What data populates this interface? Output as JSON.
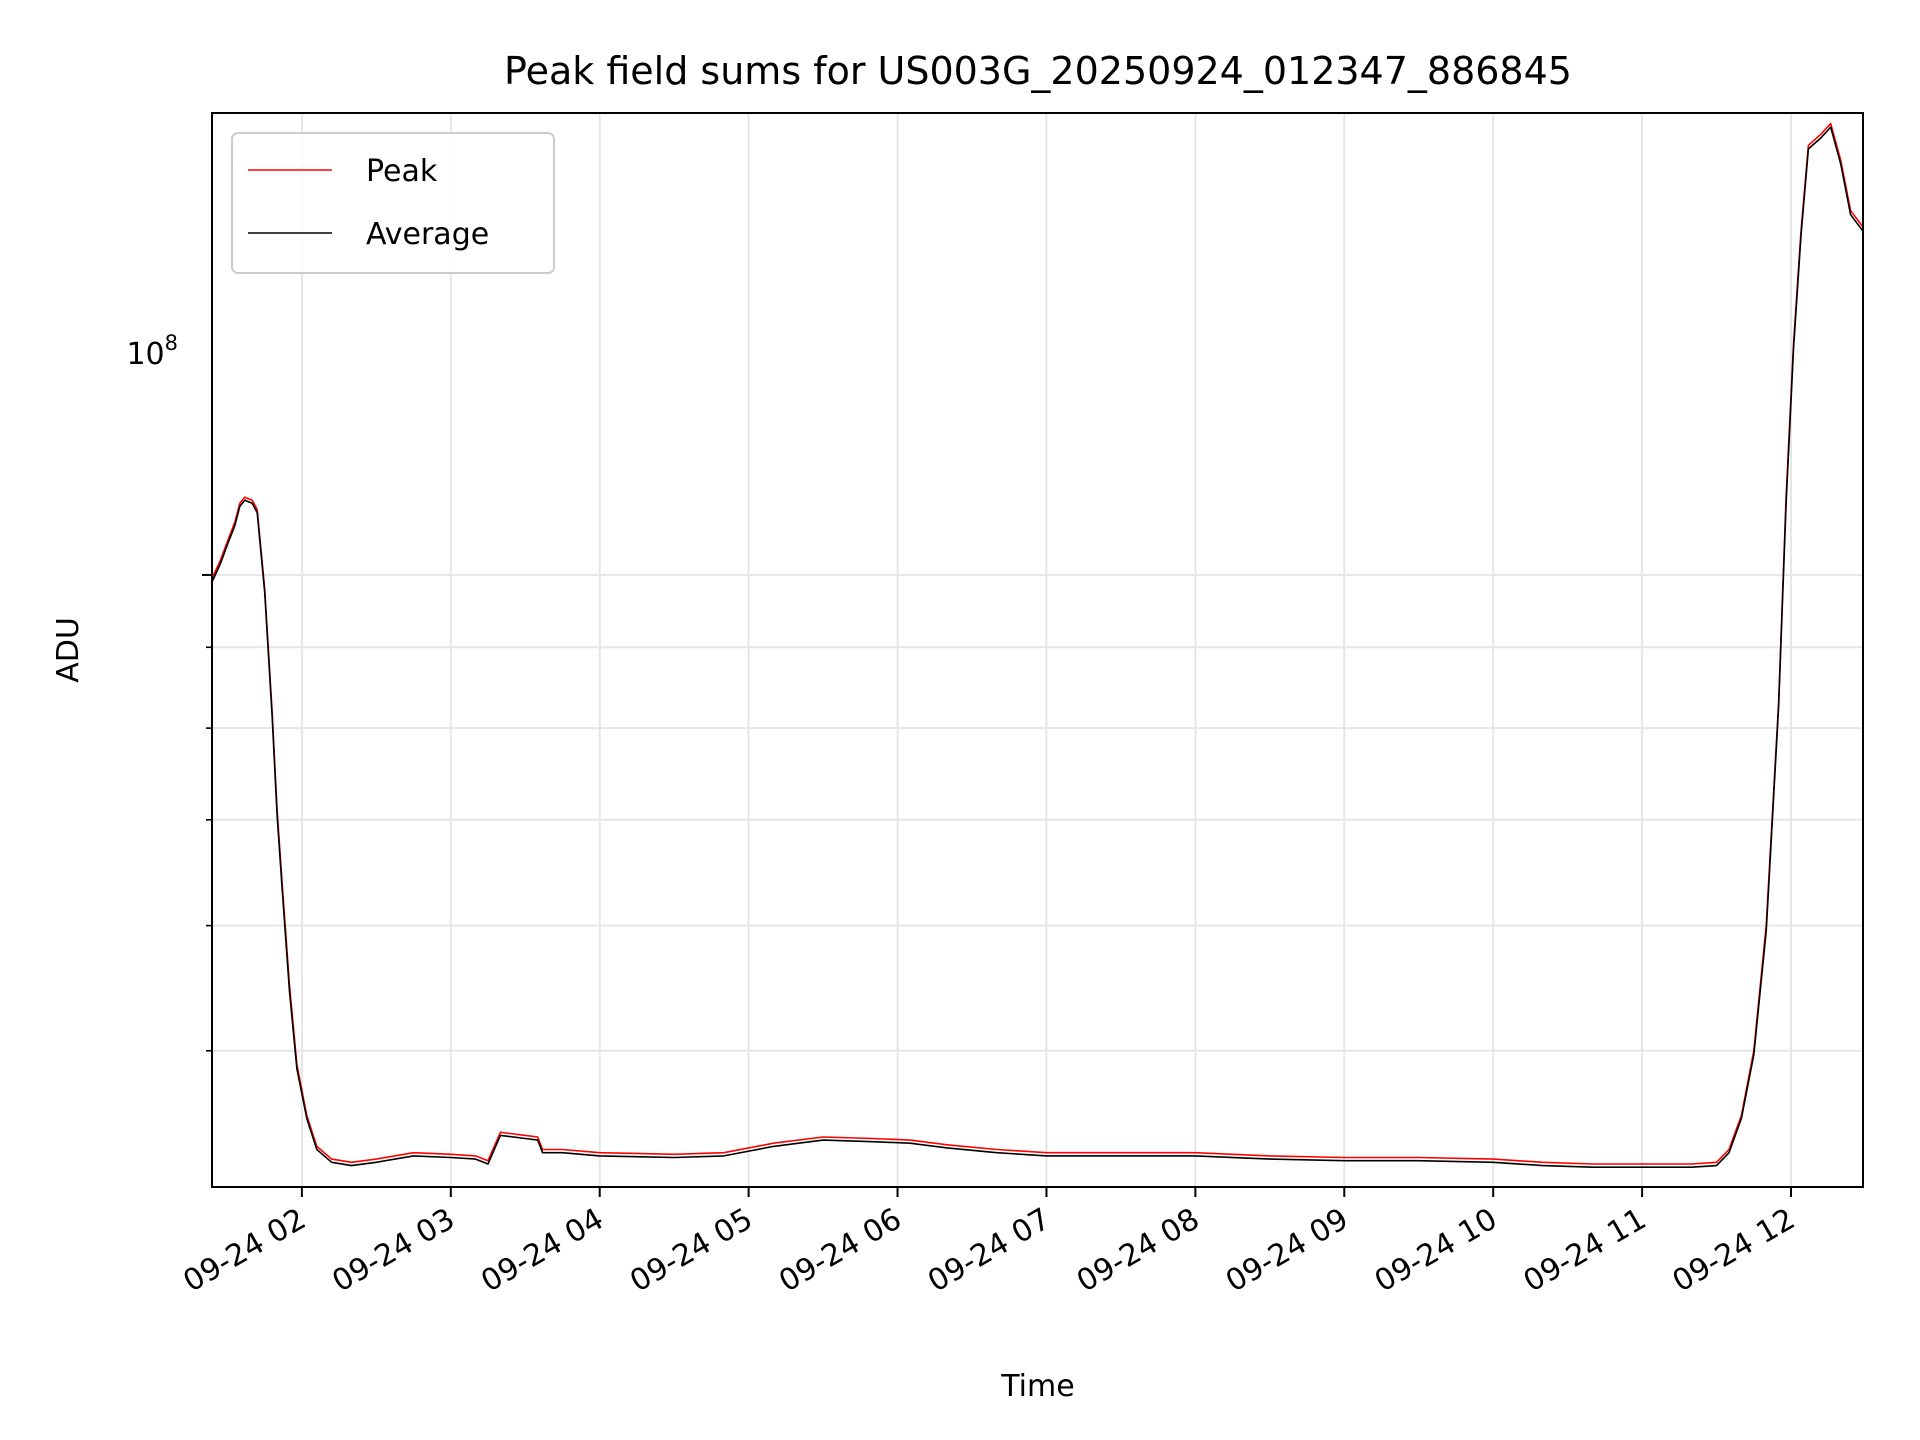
{
  "chart_data": {
    "type": "line",
    "title": "Peak field sums for US003G_20250924_012347_886845",
    "xlabel": "Time",
    "ylabel": "ADU",
    "y_scale": "log",
    "grid": true,
    "legend_position": "top-left",
    "xlim": [
      "2025-09-24 01:23:47",
      "2025-09-24 12:29:00"
    ],
    "ylim": [
      41000000,
      196000000
    ],
    "x_ticks": [
      "09-24 02",
      "09-24 03",
      "09-24 04",
      "09-24 05",
      "09-24 06",
      "09-24 07",
      "09-24 08",
      "09-24 09",
      "09-24 10",
      "09-24 11",
      "09-24 12"
    ],
    "x_tick_times": [
      "2025-09-24 02:00",
      "2025-09-24 03:00",
      "2025-09-24 04:00",
      "2025-09-24 05:00",
      "2025-09-24 06:00",
      "2025-09-24 07:00",
      "2025-09-24 08:00",
      "2025-09-24 09:00",
      "2025-09-24 10:00",
      "2025-09-24 11:00",
      "2025-09-24 12:00"
    ],
    "y_tick_value": 100000000,
    "y_tick_label": {
      "base": "10",
      "exponent": "8"
    },
    "y_minor_ticks": [
      50000000,
      60000000,
      70000000,
      80000000,
      90000000
    ],
    "series": [
      {
        "name": "Peak",
        "color": "#ff0000",
        "points": [
          [
            "2025-09-24 01:23:47",
            99500000
          ],
          [
            "2025-09-24 01:27:00",
            102000000
          ],
          [
            "2025-09-24 01:30:00",
            105000000
          ],
          [
            "2025-09-24 01:33:00",
            108000000
          ],
          [
            "2025-09-24 01:35:00",
            111000000
          ],
          [
            "2025-09-24 01:37:00",
            112000000
          ],
          [
            "2025-09-24 01:40:00",
            111500000
          ],
          [
            "2025-09-24 01:42:00",
            110000000
          ],
          [
            "2025-09-24 01:45:00",
            98000000
          ],
          [
            "2025-09-24 01:48:00",
            82000000
          ],
          [
            "2025-09-24 01:50:00",
            71000000
          ],
          [
            "2025-09-24 01:52:00",
            64000000
          ],
          [
            "2025-09-24 01:55:00",
            55000000
          ],
          [
            "2025-09-24 01:58:00",
            49000000
          ],
          [
            "2025-09-24 02:02:00",
            45500000
          ],
          [
            "2025-09-24 02:06:00",
            43500000
          ],
          [
            "2025-09-24 02:12:00",
            42700000
          ],
          [
            "2025-09-24 02:20:00",
            42500000
          ],
          [
            "2025-09-24 02:30:00",
            42700000
          ],
          [
            "2025-09-24 02:45:00",
            43100000
          ],
          [
            "2025-09-24 03:00:00",
            43000000
          ],
          [
            "2025-09-24 03:10:00",
            42900000
          ],
          [
            "2025-09-24 03:15:00",
            42600000
          ],
          [
            "2025-09-24 03:20:00",
            44400000
          ],
          [
            "2025-09-24 03:30:00",
            44200000
          ],
          [
            "2025-09-24 03:35:00",
            44100000
          ],
          [
            "2025-09-24 03:37:00",
            43300000
          ],
          [
            "2025-09-24 03:45:00",
            43300000
          ],
          [
            "2025-09-24 04:00:00",
            43100000
          ],
          [
            "2025-09-24 04:30:00",
            43000000
          ],
          [
            "2025-09-24 04:50:00",
            43100000
          ],
          [
            "2025-09-24 05:10:00",
            43700000
          ],
          [
            "2025-09-24 05:30:00",
            44100000
          ],
          [
            "2025-09-24 05:50:00",
            44000000
          ],
          [
            "2025-09-24 06:05:00",
            43900000
          ],
          [
            "2025-09-24 06:20:00",
            43600000
          ],
          [
            "2025-09-24 06:40:00",
            43300000
          ],
          [
            "2025-09-24 07:00:00",
            43100000
          ],
          [
            "2025-09-24 07:30:00",
            43100000
          ],
          [
            "2025-09-24 08:00:00",
            43100000
          ],
          [
            "2025-09-24 08:30:00",
            42900000
          ],
          [
            "2025-09-24 09:00:00",
            42800000
          ],
          [
            "2025-09-24 09:30:00",
            42800000
          ],
          [
            "2025-09-24 10:00:00",
            42700000
          ],
          [
            "2025-09-24 10:20:00",
            42500000
          ],
          [
            "2025-09-24 10:40:00",
            42400000
          ],
          [
            "2025-09-24 11:00:00",
            42400000
          ],
          [
            "2025-09-24 11:20:00",
            42400000
          ],
          [
            "2025-09-24 11:30:00",
            42500000
          ],
          [
            "2025-09-24 11:35:00",
            43300000
          ],
          [
            "2025-09-24 11:40:00",
            45500000
          ],
          [
            "2025-09-24 11:45:00",
            50000000
          ],
          [
            "2025-09-24 11:50:00",
            60000000
          ],
          [
            "2025-09-24 11:53:00",
            73000000
          ],
          [
            "2025-09-24 11:55:00",
            83000000
          ],
          [
            "2025-09-24 11:58:00",
            112000000
          ],
          [
            "2025-09-24 12:01:00",
            140000000
          ],
          [
            "2025-09-24 12:04:00",
            165000000
          ],
          [
            "2025-09-24 12:07:00",
            187000000
          ],
          [
            "2025-09-24 12:12:00",
            190000000
          ],
          [
            "2025-09-24 12:16:00",
            193000000
          ],
          [
            "2025-09-24 12:20:00",
            183000000
          ],
          [
            "2025-09-24 12:24:00",
            170000000
          ],
          [
            "2025-09-24 12:29:00",
            166000000
          ]
        ]
      },
      {
        "name": "Average",
        "color": "#000000",
        "points": [
          [
            "2025-09-24 01:23:47",
            99000000
          ],
          [
            "2025-09-24 01:27:00",
            101500000
          ],
          [
            "2025-09-24 01:30:00",
            104500000
          ],
          [
            "2025-09-24 01:33:00",
            107500000
          ],
          [
            "2025-09-24 01:35:00",
            110500000
          ],
          [
            "2025-09-24 01:37:00",
            111500000
          ],
          [
            "2025-09-24 01:40:00",
            111000000
          ],
          [
            "2025-09-24 01:42:00",
            109500000
          ],
          [
            "2025-09-24 01:45:00",
            97500000
          ],
          [
            "2025-09-24 01:48:00",
            81500000
          ],
          [
            "2025-09-24 01:50:00",
            70500000
          ],
          [
            "2025-09-24 01:52:00",
            63500000
          ],
          [
            "2025-09-24 01:55:00",
            54500000
          ],
          [
            "2025-09-24 01:58:00",
            48700000
          ],
          [
            "2025-09-24 02:02:00",
            45300000
          ],
          [
            "2025-09-24 02:06:00",
            43300000
          ],
          [
            "2025-09-24 02:12:00",
            42500000
          ],
          [
            "2025-09-24 02:20:00",
            42300000
          ],
          [
            "2025-09-24 02:30:00",
            42500000
          ],
          [
            "2025-09-24 02:45:00",
            42900000
          ],
          [
            "2025-09-24 03:00:00",
            42800000
          ],
          [
            "2025-09-24 03:10:00",
            42700000
          ],
          [
            "2025-09-24 03:15:00",
            42400000
          ],
          [
            "2025-09-24 03:20:00",
            44200000
          ],
          [
            "2025-09-24 03:30:00",
            44000000
          ],
          [
            "2025-09-24 03:35:00",
            43900000
          ],
          [
            "2025-09-24 03:37:00",
            43100000
          ],
          [
            "2025-09-24 03:45:00",
            43100000
          ],
          [
            "2025-09-24 04:00:00",
            42900000
          ],
          [
            "2025-09-24 04:30:00",
            42800000
          ],
          [
            "2025-09-24 04:50:00",
            42900000
          ],
          [
            "2025-09-24 05:10:00",
            43500000
          ],
          [
            "2025-09-24 05:30:00",
            43900000
          ],
          [
            "2025-09-24 05:50:00",
            43800000
          ],
          [
            "2025-09-24 06:05:00",
            43700000
          ],
          [
            "2025-09-24 06:20:00",
            43400000
          ],
          [
            "2025-09-24 06:40:00",
            43100000
          ],
          [
            "2025-09-24 07:00:00",
            42900000
          ],
          [
            "2025-09-24 07:30:00",
            42900000
          ],
          [
            "2025-09-24 08:00:00",
            42900000
          ],
          [
            "2025-09-24 08:30:00",
            42700000
          ],
          [
            "2025-09-24 09:00:00",
            42600000
          ],
          [
            "2025-09-24 09:30:00",
            42600000
          ],
          [
            "2025-09-24 10:00:00",
            42500000
          ],
          [
            "2025-09-24 10:20:00",
            42300000
          ],
          [
            "2025-09-24 10:40:00",
            42200000
          ],
          [
            "2025-09-24 11:00:00",
            42200000
          ],
          [
            "2025-09-24 11:20:00",
            42200000
          ],
          [
            "2025-09-24 11:30:00",
            42300000
          ],
          [
            "2025-09-24 11:35:00",
            43100000
          ],
          [
            "2025-09-24 11:40:00",
            45300000
          ],
          [
            "2025-09-24 11:45:00",
            49700000
          ],
          [
            "2025-09-24 11:50:00",
            59500000
          ],
          [
            "2025-09-24 11:53:00",
            72500000
          ],
          [
            "2025-09-24 11:55:00",
            82500000
          ],
          [
            "2025-09-24 11:58:00",
            111000000
          ],
          [
            "2025-09-24 12:01:00",
            139000000
          ],
          [
            "2025-09-24 12:04:00",
            164000000
          ],
          [
            "2025-09-24 12:07:00",
            186000000
          ],
          [
            "2025-09-24 12:12:00",
            189000000
          ],
          [
            "2025-09-24 12:16:00",
            192000000
          ],
          [
            "2025-09-24 12:20:00",
            182000000
          ],
          [
            "2025-09-24 12:24:00",
            169000000
          ],
          [
            "2025-09-24 12:29:00",
            165000000
          ]
        ]
      }
    ]
  }
}
